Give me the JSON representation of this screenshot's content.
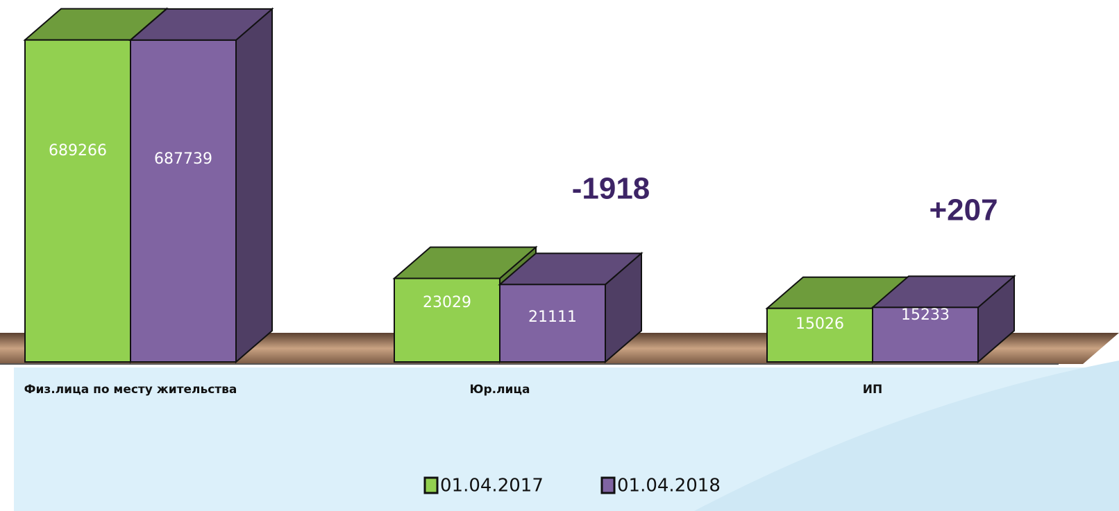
{
  "chart_data": {
    "type": "bar3d",
    "categories": [
      "Физ.лица  по месту жительства",
      "Юр.лица",
      "ИП"
    ],
    "series": [
      {
        "name": "01.04.2017",
        "color": "#92d050",
        "values": [
          689266,
          23029,
          15026
        ]
      },
      {
        "name": "01.04.2018",
        "color": "#8064a2",
        "values": [
          687739,
          21111,
          15233
        ]
      }
    ],
    "log_scale": true,
    "ylim": [
      7000,
      1000000
    ],
    "annotations": [
      "-1918",
      "+207"
    ],
    "legend": "bottom"
  }
}
